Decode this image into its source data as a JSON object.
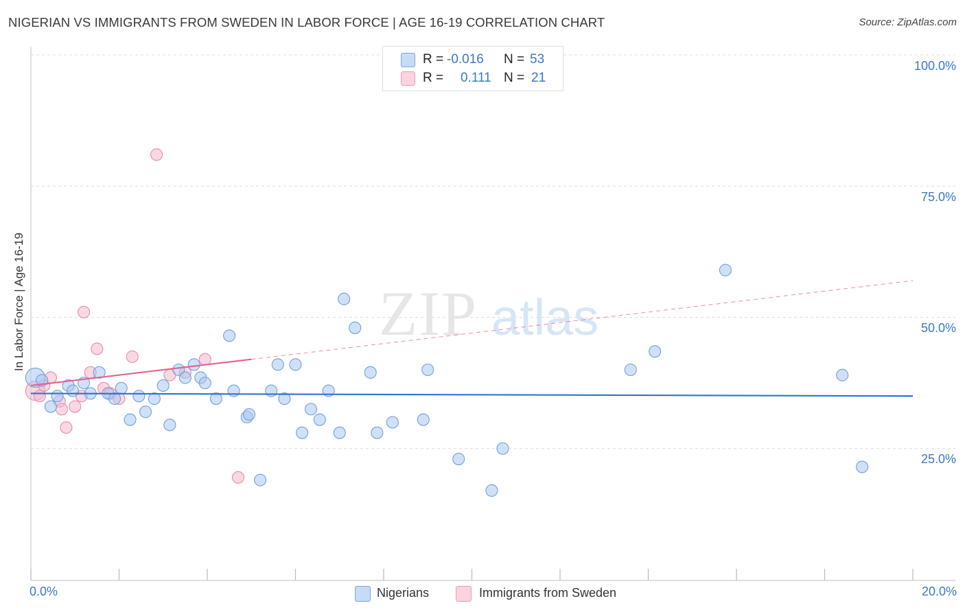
{
  "title": "NIGERIAN VS IMMIGRANTS FROM SWEDEN IN LABOR FORCE | AGE 16-19 CORRELATION CHART",
  "source": "Source: ZipAtlas.com",
  "watermark": {
    "zip": "ZIP",
    "atlas": "atlas"
  },
  "legend": {
    "series1": {
      "r_label": "R =",
      "r_value": "-0.016",
      "n_label": "N =",
      "n_value": "53",
      "color": "#a9c8f0"
    },
    "series2": {
      "r_label": "R =",
      "r_value": "0.111",
      "n_label": "N =",
      "n_value": "21",
      "color": "#f6b8cb"
    }
  },
  "bottom_legend": {
    "series1": "Nigerians",
    "series2": "Immigrants from Sweden"
  },
  "colors": {
    "blue_fill": "#a9c8f0",
    "blue_stroke": "#6fa0dc",
    "blue_line": "#2f72d2",
    "pink_fill": "#f6b8cb",
    "pink_stroke": "#e88aa8",
    "pink_line": "#e2628d",
    "axis_text": "#3a78c9",
    "grid": "#dcdcdc"
  },
  "chart_data": {
    "type": "scatter",
    "title": "NIGERIAN VS IMMIGRANTS FROM SWEDEN IN LABOR FORCE | AGE 16-19 CORRELATION CHART",
    "xlabel": "",
    "ylabel": "In Labor Force | Age 16-19",
    "xlim": [
      0,
      20
    ],
    "ylim": [
      0,
      105
    ],
    "x_tick_labels": [
      "0.0%",
      "20.0%"
    ],
    "y_ticks": [
      25,
      50,
      75,
      100
    ],
    "y_tick_labels": [
      "25.0%",
      "50.0%",
      "75.0%",
      "100.0%"
    ],
    "grid": true,
    "series": [
      {
        "name": "Nigerians",
        "r": -0.016,
        "n": 53,
        "trend": {
          "x0": 0,
          "y0": 35.5,
          "x1": 20,
          "y1": 35.0
        },
        "points": [
          {
            "x": 0.1,
            "y": 38.5,
            "big": true
          },
          {
            "x": 0.25,
            "y": 38
          },
          {
            "x": 0.45,
            "y": 33
          },
          {
            "x": 0.6,
            "y": 35
          },
          {
            "x": 0.85,
            "y": 37
          },
          {
            "x": 0.95,
            "y": 36
          },
          {
            "x": 1.2,
            "y": 37.5
          },
          {
            "x": 1.35,
            "y": 35.5
          },
          {
            "x": 1.55,
            "y": 39.5
          },
          {
            "x": 1.75,
            "y": 35.5
          },
          {
            "x": 1.9,
            "y": 34.5
          },
          {
            "x": 2.05,
            "y": 36.5
          },
          {
            "x": 2.25,
            "y": 30.5
          },
          {
            "x": 2.45,
            "y": 35
          },
          {
            "x": 2.6,
            "y": 32
          },
          {
            "x": 2.8,
            "y": 34.5
          },
          {
            "x": 3.0,
            "y": 37
          },
          {
            "x": 3.15,
            "y": 29.5
          },
          {
            "x": 3.35,
            "y": 40
          },
          {
            "x": 3.5,
            "y": 38.5
          },
          {
            "x": 3.7,
            "y": 41
          },
          {
            "x": 3.85,
            "y": 38.5
          },
          {
            "x": 3.95,
            "y": 37.5
          },
          {
            "x": 4.2,
            "y": 34.5
          },
          {
            "x": 4.5,
            "y": 46.5
          },
          {
            "x": 4.6,
            "y": 36
          },
          {
            "x": 4.9,
            "y": 31
          },
          {
            "x": 4.95,
            "y": 31.5
          },
          {
            "x": 5.2,
            "y": 19
          },
          {
            "x": 5.45,
            "y": 36
          },
          {
            "x": 5.6,
            "y": 41
          },
          {
            "x": 5.75,
            "y": 34.5
          },
          {
            "x": 6.0,
            "y": 41
          },
          {
            "x": 6.15,
            "y": 28
          },
          {
            "x": 6.35,
            "y": 32.5
          },
          {
            "x": 6.55,
            "y": 30.5
          },
          {
            "x": 6.75,
            "y": 36
          },
          {
            "x": 7.0,
            "y": 28
          },
          {
            "x": 7.1,
            "y": 53.5
          },
          {
            "x": 7.35,
            "y": 48
          },
          {
            "x": 7.7,
            "y": 39.5
          },
          {
            "x": 7.85,
            "y": 28
          },
          {
            "x": 8.2,
            "y": 30
          },
          {
            "x": 8.9,
            "y": 30.5
          },
          {
            "x": 9.0,
            "y": 40
          },
          {
            "x": 9.7,
            "y": 23
          },
          {
            "x": 10.45,
            "y": 17
          },
          {
            "x": 10.7,
            "y": 25
          },
          {
            "x": 13.6,
            "y": 40
          },
          {
            "x": 14.15,
            "y": 43.5
          },
          {
            "x": 15.75,
            "y": 59
          },
          {
            "x": 18.4,
            "y": 39
          },
          {
            "x": 18.85,
            "y": 21.5
          }
        ]
      },
      {
        "name": "Immigrants from Sweden",
        "r": 0.111,
        "n": 21,
        "trend": {
          "x0": 0,
          "y0": 37.0,
          "x1": 20,
          "y1": 57.0,
          "solid_until_x": 5.0
        },
        "points": [
          {
            "x": 0.1,
            "y": 36,
            "big": true
          },
          {
            "x": 0.3,
            "y": 37
          },
          {
            "x": 0.45,
            "y": 38.5
          },
          {
            "x": 0.65,
            "y": 34
          },
          {
            "x": 0.7,
            "y": 32.5
          },
          {
            "x": 0.8,
            "y": 29
          },
          {
            "x": 1.0,
            "y": 33
          },
          {
            "x": 1.15,
            "y": 35
          },
          {
            "x": 1.2,
            "y": 51
          },
          {
            "x": 1.35,
            "y": 39.5
          },
          {
            "x": 1.5,
            "y": 44
          },
          {
            "x": 1.65,
            "y": 36.5
          },
          {
            "x": 1.8,
            "y": 35.5
          },
          {
            "x": 2.0,
            "y": 34.5
          },
          {
            "x": 2.3,
            "y": 42.5
          },
          {
            "x": 2.85,
            "y": 81
          },
          {
            "x": 3.15,
            "y": 39
          },
          {
            "x": 3.5,
            "y": 39.5
          },
          {
            "x": 3.95,
            "y": 42
          },
          {
            "x": 4.7,
            "y": 19.5
          },
          {
            "x": 0.2,
            "y": 35
          }
        ]
      }
    ]
  }
}
